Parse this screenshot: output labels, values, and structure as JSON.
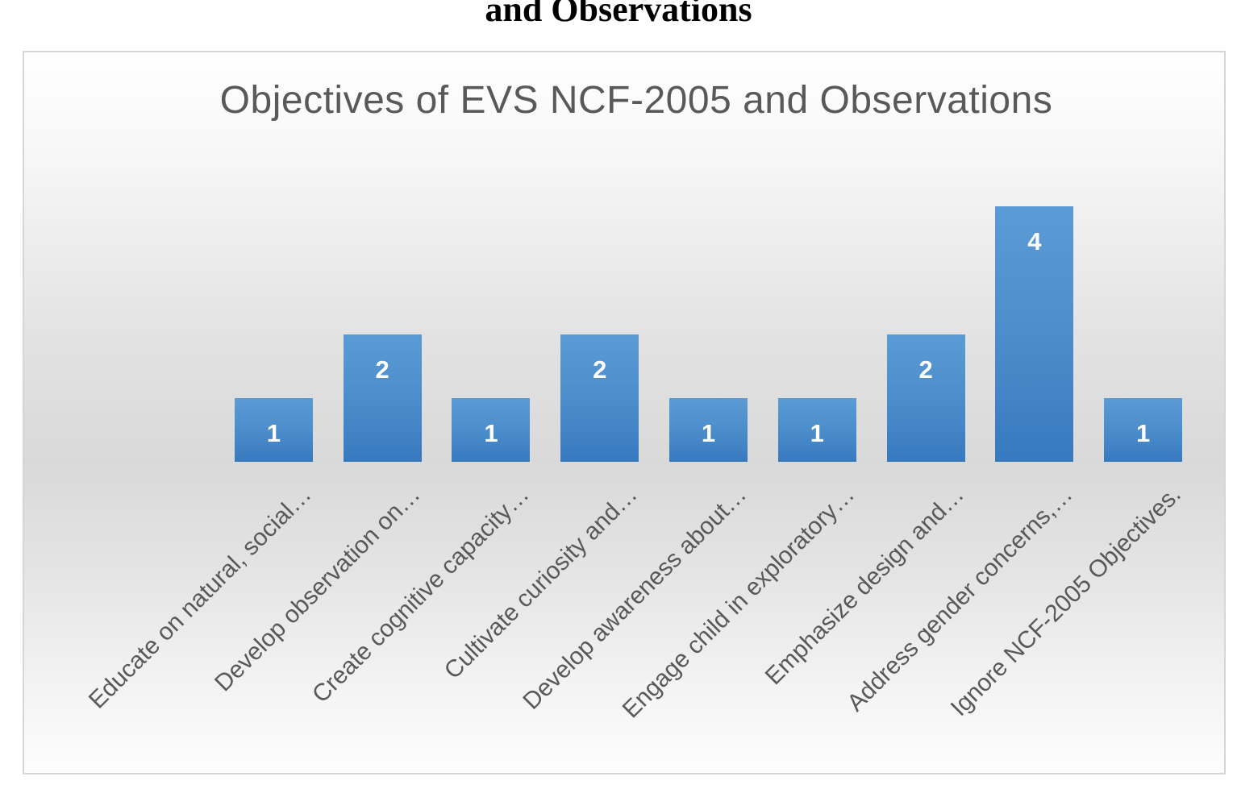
{
  "document": {
    "heading_fragment": "and Observations"
  },
  "chart_data": {
    "type": "bar",
    "title": "Objectives of EVS NCF-2005 and Observations",
    "categories": [
      "Educate on natural, social…",
      "Develop observation on…",
      "Create cognitive capacity…",
      "Cultivate curiosity and…",
      "Develop awareness about…",
      "Engage child in exploratory…",
      "Emphasize design and…",
      "Address gender concerns,…",
      "Ignore NCF-2005 Objectives."
    ],
    "values": [
      1,
      2,
      1,
      2,
      1,
      1,
      2,
      4,
      1
    ],
    "data_labels_shown": true,
    "xlabel": "",
    "ylabel": "",
    "ylim": [
      0,
      4.5
    ],
    "y_axis_visible": false,
    "x_axis_visible": false,
    "gridlines": false,
    "legend": "none",
    "x_tick_rotation_deg": 45,
    "colors": {
      "bar_gradient_top": "#5b9bd5",
      "bar_gradient_bottom": "#3779be",
      "data_label_text": "#ffffff",
      "title_text": "#595959",
      "tick_label_text": "#595959",
      "chart_border": "#d6d6d6",
      "background_mid": "#d9d9d9",
      "background_edge": "#ffffff",
      "bar_shadow": "#737373"
    }
  }
}
